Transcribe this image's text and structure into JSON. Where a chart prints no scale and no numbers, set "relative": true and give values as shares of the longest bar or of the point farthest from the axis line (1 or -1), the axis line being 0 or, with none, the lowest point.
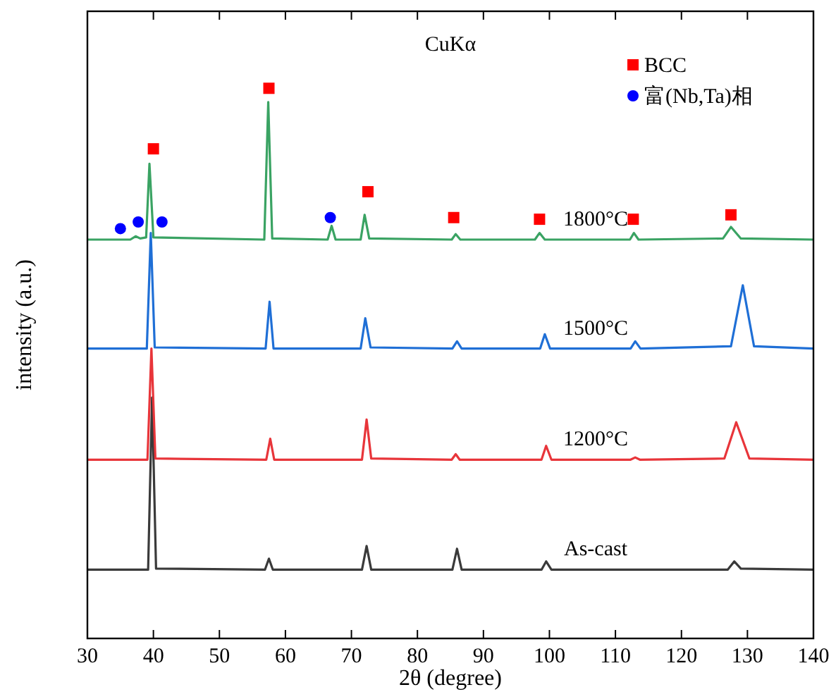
{
  "chart_data": {
    "type": "line",
    "relative": true,
    "xlabel": "2θ (degree)",
    "ylabel": "intensity (a.u.)",
    "xlim": [
      30,
      140
    ],
    "xticks": [
      30,
      40,
      50,
      60,
      70,
      80,
      90,
      100,
      110,
      120,
      130,
      140
    ],
    "tick_labels": "x",
    "grid": false,
    "legend": "top right",
    "annotations": [
      "CuKα"
    ],
    "series": [
      {
        "name": "As-cast",
        "color": "#3a3a3a",
        "x": [
          30,
          39.2,
          39.8,
          40.4,
          56.9,
          57.5,
          58.1,
          71.6,
          72.3,
          73.0,
          85.3,
          86,
          86.7,
          98.8,
          99.5,
          100.3,
          127,
          128,
          129,
          140
        ],
        "values": [
          0.125,
          0.125,
          0.438,
          0.127,
          0.125,
          0.145,
          0.125,
          0.125,
          0.168,
          0.125,
          0.125,
          0.163,
          0.125,
          0.125,
          0.14,
          0.125,
          0.125,
          0.14,
          0.127,
          0.125
        ]
      },
      {
        "name": "1200°C",
        "color": "#e8353a",
        "x": [
          30,
          39.1,
          39.7,
          40.3,
          57.1,
          57.7,
          58.3,
          71.6,
          72.3,
          73.0,
          85.2,
          85.8,
          86.4,
          98.8,
          99.5,
          100.3,
          112.3,
          113,
          113.7,
          126.5,
          128.3,
          130.3,
          140
        ],
        "values": [
          0.325,
          0.325,
          0.527,
          0.327,
          0.325,
          0.363,
          0.325,
          0.325,
          0.398,
          0.327,
          0.325,
          0.335,
          0.325,
          0.325,
          0.35,
          0.325,
          0.325,
          0.329,
          0.325,
          0.327,
          0.393,
          0.327,
          0.325
        ]
      },
      {
        "name": "1500°C",
        "color": "#1f6fd6",
        "x": [
          30,
          39.0,
          39.6,
          40.2,
          57.0,
          57.6,
          58.2,
          71.4,
          72.1,
          72.9,
          85.3,
          86,
          86.7,
          98.6,
          99.3,
          100.1,
          112.3,
          113,
          113.8,
          127.5,
          129.3,
          131,
          140
        ],
        "values": [
          0.527,
          0.527,
          0.737,
          0.529,
          0.527,
          0.612,
          0.527,
          0.527,
          0.582,
          0.529,
          0.527,
          0.54,
          0.527,
          0.527,
          0.553,
          0.527,
          0.527,
          0.54,
          0.527,
          0.531,
          0.642,
          0.531,
          0.527
        ]
      },
      {
        "name": "1800°C",
        "color": "#3aa363",
        "x": [
          30,
          36.5,
          37.3,
          38.0,
          38.9,
          39.4,
          40.0,
          56.8,
          57.4,
          58.0,
          66.4,
          67,
          67.6,
          71.4,
          72,
          72.7,
          85.2,
          85.8,
          86.5,
          97.8,
          98.5,
          99.3,
          112.2,
          112.8,
          113.5,
          126.3,
          127.5,
          129,
          140
        ],
        "values": [
          0.725,
          0.725,
          0.731,
          0.727,
          0.729,
          0.863,
          0.729,
          0.725,
          0.975,
          0.727,
          0.725,
          0.75,
          0.725,
          0.725,
          0.77,
          0.727,
          0.725,
          0.735,
          0.725,
          0.725,
          0.737,
          0.725,
          0.725,
          0.737,
          0.725,
          0.727,
          0.748,
          0.727,
          0.725
        ]
      },
      {
        "type": "scatter",
        "name": "BCC",
        "color": "#ff0000",
        "marker": "square",
        "x": [
          40,
          57.5,
          72.5,
          85.5,
          98.5,
          112.7,
          127.5
        ],
        "values": [
          0.89,
          1,
          0.812,
          0.765,
          0.762,
          0.762,
          0.77
        ]
      },
      {
        "type": "scatter",
        "name": "富(Nb,Ta)相",
        "color": "#0000ff",
        "marker": "circle",
        "x": [
          35,
          37.7,
          41.3,
          66.8
        ],
        "values": [
          0.745,
          0.757,
          0.757,
          0.765
        ]
      }
    ]
  }
}
